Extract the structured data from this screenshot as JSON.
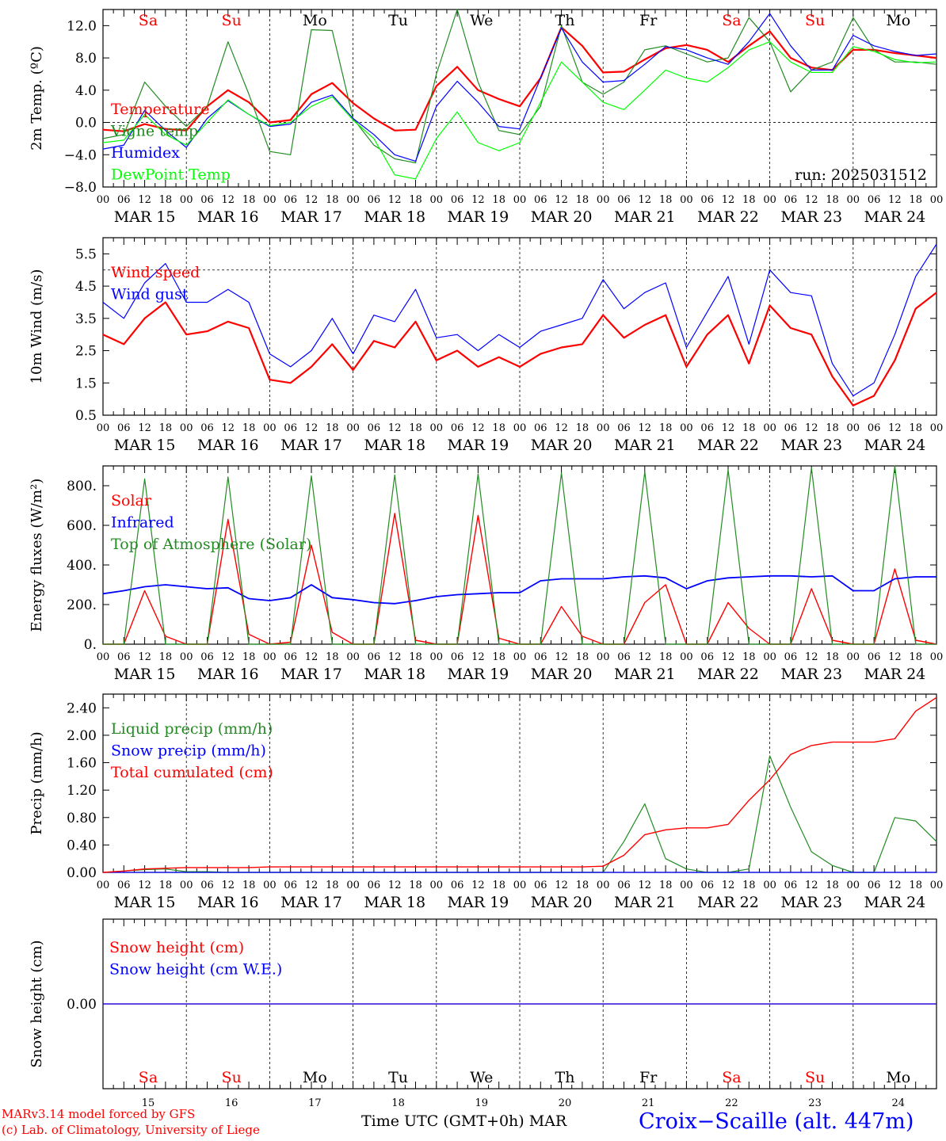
{
  "chart_data": [
    {
      "type": "line",
      "ylabel": "2m Temp. (ºC)",
      "ylim": [
        -8,
        14
      ],
      "yticks": [
        "12.0",
        "8.0",
        "4.0",
        "0.0",
        "−4.0",
        "−8.0"
      ],
      "ytick_values": [
        12,
        8,
        4,
        0,
        -4,
        -8
      ],
      "zero_line": true,
      "run_label": "run: 2025031512",
      "day_names": [
        {
          "label": "Sa",
          "color": "#ff0000"
        },
        {
          "label": "Su",
          "color": "#ff0000"
        },
        {
          "label": "Mo",
          "color": "#000000"
        },
        {
          "label": "Tu",
          "color": "#000000"
        },
        {
          "label": "We",
          "color": "#000000"
        },
        {
          "label": "Th",
          "color": "#000000"
        },
        {
          "label": "Fr",
          "color": "#000000"
        },
        {
          "label": "Sa",
          "color": "#ff0000"
        },
        {
          "label": "Su",
          "color": "#ff0000"
        },
        {
          "label": "Mo",
          "color": "#000000"
        }
      ],
      "x_hours": [
        0,
        6,
        12,
        18,
        24,
        30,
        36,
        42,
        48,
        54,
        60,
        66,
        72,
        78,
        84,
        90,
        96,
        102,
        108,
        114,
        120,
        126,
        132,
        138,
        144,
        150,
        156,
        162,
        168,
        174,
        180,
        186,
        192,
        198,
        204,
        210,
        216,
        222,
        228,
        234,
        240
      ],
      "series": [
        {
          "name": "Temperature",
          "color": "#ff0000",
          "width": 2.2,
          "values": [
            -0.9,
            -1.1,
            -0.2,
            -0.8,
            -1.0,
            2.0,
            4.0,
            2.5,
            0.0,
            0.3,
            3.5,
            4.9,
            2.4,
            0.5,
            -1.0,
            -0.9,
            4.5,
            6.9,
            4.0,
            2.9,
            2.0,
            5.5,
            11.8,
            9.5,
            6.2,
            6.3,
            7.8,
            9.2,
            9.6,
            9.0,
            7.5,
            9.5,
            11.3,
            8.0,
            6.8,
            6.5,
            9.0,
            9.0,
            8.6,
            8.3,
            8.0
          ]
        },
        {
          "name": "Vigne temp",
          "color": "#228b22",
          "width": 1.2,
          "values": [
            -2.0,
            -1.5,
            5.0,
            2.0,
            -0.5,
            2.0,
            10.0,
            3.5,
            -3.6,
            -4.0,
            11.5,
            11.4,
            0.5,
            -2.8,
            -4.5,
            -5.0,
            6.0,
            14.0,
            5.0,
            -1.0,
            -1.5,
            2.0,
            12.0,
            5.0,
            3.5,
            5.0,
            9.0,
            9.5,
            8.5,
            7.5,
            8.0,
            13.0,
            10.0,
            3.8,
            6.5,
            7.5,
            13.0,
            9.0,
            7.5,
            7.5,
            7.2
          ]
        },
        {
          "name": "Humidex",
          "color": "#0000ff",
          "width": 1.2,
          "values": [
            -3.3,
            -2.8,
            1.5,
            -1.0,
            -3.1,
            0.5,
            2.7,
            1.0,
            -0.5,
            -0.2,
            2.5,
            3.4,
            0.5,
            -1.5,
            -4.0,
            -4.8,
            2.0,
            5.1,
            2.5,
            -0.5,
            -0.8,
            5.5,
            11.7,
            7.5,
            5.0,
            5.2,
            7.2,
            9.4,
            9.0,
            8.0,
            7.2,
            10.0,
            13.5,
            9.5,
            6.5,
            6.5,
            10.8,
            9.5,
            8.8,
            8.3,
            8.5
          ]
        },
        {
          "name": "DewPoint Temp",
          "color": "#00ff00",
          "width": 1.2,
          "values": [
            -2.5,
            -2.2,
            1.0,
            -1.5,
            -2.8,
            0.0,
            2.8,
            1.0,
            -0.4,
            0.0,
            2.0,
            3.2,
            0.3,
            -2.0,
            -6.5,
            -7.0,
            -2.0,
            1.3,
            -2.5,
            -3.5,
            -2.5,
            2.5,
            7.5,
            5.0,
            2.5,
            1.6,
            4.0,
            6.5,
            5.5,
            5.0,
            6.8,
            9.0,
            10.0,
            7.5,
            6.2,
            6.2,
            9.4,
            8.8,
            7.8,
            7.4,
            7.5
          ]
        }
      ]
    },
    {
      "type": "line",
      "ylabel": "10m Wind (m/s)",
      "ylim": [
        0.5,
        6.0
      ],
      "yticks": [
        "5.5",
        "4.5",
        "3.5",
        "2.5",
        "1.5",
        "0.5"
      ],
      "ytick_values": [
        5.5,
        4.5,
        3.5,
        2.5,
        1.5,
        0.5
      ],
      "ref_line": 5.0,
      "x_hours": [
        0,
        6,
        12,
        18,
        24,
        30,
        36,
        42,
        48,
        54,
        60,
        66,
        72,
        78,
        84,
        90,
        96,
        102,
        108,
        114,
        120,
        126,
        132,
        138,
        144,
        150,
        156,
        162,
        168,
        174,
        180,
        186,
        192,
        198,
        204,
        210,
        216,
        222,
        228,
        234,
        240
      ],
      "series": [
        {
          "name": "Wind speed",
          "color": "#ff0000",
          "width": 2.2,
          "values": [
            3.0,
            2.7,
            3.5,
            4.0,
            3.0,
            3.1,
            3.4,
            3.2,
            1.6,
            1.5,
            2.0,
            2.7,
            1.9,
            2.8,
            2.6,
            3.4,
            2.2,
            2.5,
            2.0,
            2.3,
            2.0,
            2.4,
            2.6,
            2.7,
            3.6,
            2.9,
            3.3,
            3.6,
            2.0,
            3.0,
            3.6,
            2.1,
            3.9,
            3.2,
            3.0,
            1.7,
            0.8,
            1.1,
            2.2,
            3.8,
            4.3
          ]
        },
        {
          "name": "Wind gust",
          "color": "#0000ff",
          "width": 1.2,
          "values": [
            4.0,
            3.5,
            4.6,
            5.2,
            4.0,
            4.0,
            4.4,
            4.0,
            2.4,
            2.0,
            2.5,
            3.5,
            2.4,
            3.6,
            3.4,
            4.4,
            2.9,
            3.0,
            2.5,
            3.0,
            2.6,
            3.1,
            3.3,
            3.5,
            4.7,
            3.8,
            4.3,
            4.6,
            2.6,
            3.7,
            4.8,
            2.7,
            5.0,
            4.3,
            4.2,
            2.1,
            1.1,
            1.5,
            3.0,
            4.8,
            5.8
          ]
        }
      ]
    },
    {
      "type": "line",
      "ylabel": "Energy fluxes (W/m²)",
      "ylim": [
        0,
        900
      ],
      "yticks": [
        "800.",
        "600.",
        "400.",
        "200.",
        "0."
      ],
      "ytick_values": [
        800,
        600,
        400,
        200,
        0
      ],
      "x_hours": [
        0,
        6,
        12,
        18,
        24,
        30,
        36,
        42,
        48,
        54,
        60,
        66,
        72,
        78,
        84,
        90,
        96,
        102,
        108,
        114,
        120,
        126,
        132,
        138,
        144,
        150,
        156,
        162,
        168,
        174,
        180,
        186,
        192,
        198,
        204,
        210,
        216,
        222,
        228,
        234,
        240
      ],
      "series": [
        {
          "name": "Solar",
          "color": "#ff0000",
          "width": 1.4,
          "values": [
            0,
            0,
            270,
            40,
            0,
            0,
            630,
            50,
            0,
            10,
            500,
            60,
            0,
            0,
            660,
            20,
            0,
            0,
            650,
            30,
            0,
            0,
            190,
            40,
            0,
            0,
            210,
            300,
            0,
            0,
            210,
            80,
            0,
            0,
            280,
            20,
            0,
            0,
            380,
            20,
            0
          ]
        },
        {
          "name": "Infrared",
          "color": "#0000ff",
          "width": 1.8,
          "values": [
            255,
            270,
            290,
            300,
            290,
            280,
            285,
            230,
            220,
            235,
            300,
            235,
            225,
            210,
            205,
            220,
            240,
            250,
            255,
            260,
            260,
            320,
            330,
            330,
            330,
            340,
            345,
            335,
            280,
            320,
            335,
            340,
            345,
            345,
            340,
            345,
            270,
            270,
            330,
            340,
            340
          ]
        },
        {
          "name": "Top of Atmosphere (Solar)",
          "color": "#228b22",
          "width": 1.2,
          "values": [
            0,
            0,
            835,
            0,
            0,
            0,
            845,
            0,
            0,
            0,
            850,
            0,
            0,
            0,
            855,
            0,
            0,
            0,
            860,
            0,
            0,
            0,
            865,
            0,
            0,
            0,
            870,
            0,
            0,
            0,
            880,
            0,
            0,
            0,
            890,
            0,
            0,
            0,
            900,
            0,
            0
          ]
        }
      ]
    },
    {
      "type": "line",
      "ylabel": "Precip (mm/h)",
      "ylim": [
        0,
        2.6
      ],
      "yticks": [
        "2.40",
        "2.00",
        "1.60",
        "1.20",
        "0.80",
        "0.40",
        "0.00"
      ],
      "ytick_values": [
        2.4,
        2.0,
        1.6,
        1.2,
        0.8,
        0.4,
        0.0
      ],
      "x_hours": [
        0,
        6,
        12,
        18,
        24,
        30,
        36,
        42,
        48,
        54,
        60,
        66,
        72,
        78,
        84,
        90,
        96,
        102,
        108,
        114,
        120,
        126,
        132,
        138,
        144,
        150,
        156,
        162,
        168,
        174,
        180,
        186,
        192,
        198,
        204,
        210,
        216,
        222,
        228,
        234,
        240
      ],
      "series": [
        {
          "name": "Liquid precip (mm/h)",
          "color": "#228b22",
          "width": 1.2,
          "values": [
            0,
            0.02,
            0.04,
            0.05,
            0.01,
            0.01,
            0.0,
            0.0,
            0.0,
            0.0,
            0.0,
            0.0,
            0.0,
            0.0,
            0.0,
            0.0,
            0.0,
            0.0,
            0.0,
            0.0,
            0.0,
            0.0,
            0.0,
            0.0,
            0.0,
            0.45,
            1.0,
            0.2,
            0.05,
            0.0,
            0.0,
            0.05,
            1.7,
            0.95,
            0.3,
            0.1,
            0.0,
            0.0,
            0.8,
            0.75,
            0.45
          ]
        },
        {
          "name": "Snow precip (mm/h)",
          "color": "#0000ff",
          "width": 1.2,
          "values": [
            0,
            0,
            0,
            0,
            0,
            0,
            0,
            0,
            0,
            0,
            0,
            0,
            0,
            0,
            0,
            0,
            0,
            0,
            0,
            0,
            0,
            0,
            0,
            0,
            0,
            0,
            0,
            0,
            0,
            0,
            0,
            0,
            0,
            0,
            0,
            0,
            0,
            0,
            0,
            0,
            0
          ]
        },
        {
          "name": "Total cumulated (cm)",
          "color": "#ff0000",
          "width": 1.4,
          "values": [
            0,
            0.02,
            0.05,
            0.06,
            0.07,
            0.07,
            0.07,
            0.07,
            0.08,
            0.08,
            0.08,
            0.08,
            0.08,
            0.08,
            0.08,
            0.08,
            0.08,
            0.08,
            0.08,
            0.08,
            0.08,
            0.08,
            0.08,
            0.08,
            0.09,
            0.25,
            0.55,
            0.62,
            0.65,
            0.65,
            0.7,
            1.05,
            1.35,
            1.72,
            1.85,
            1.9,
            1.9,
            1.9,
            1.95,
            2.35,
            2.55
          ]
        }
      ]
    },
    {
      "type": "line",
      "ylabel": "Snow height (cm)",
      "ylim": [
        -1,
        1
      ],
      "yticks": [
        "0.00"
      ],
      "ytick_values": [
        0
      ],
      "series": [
        {
          "name": "Snow height (cm)",
          "color": "#ff0000",
          "width": 1.2,
          "values": [
            0,
            0
          ]
        },
        {
          "name": "Snow height (cm W.E.)",
          "color": "#0000ff",
          "width": 1.2,
          "values": [
            0,
            0
          ]
        }
      ],
      "day_names": [
        "Sa",
        "Su",
        "Mo",
        "Tu",
        "We",
        "Th",
        "Fr",
        "Sa",
        "Su",
        "Mo"
      ],
      "day_numbers": [
        "15",
        "16",
        "17",
        "18",
        "19",
        "20",
        "21",
        "22",
        "23",
        "24"
      ],
      "xlabel": "Time UTC (GMT+0h) MAR"
    }
  ],
  "hour_ticks": [
    "00",
    "06",
    "12",
    "18"
  ],
  "date_labels": [
    "MAR 15",
    "MAR 16",
    "MAR 17",
    "MAR 18",
    "MAR 19",
    "MAR 20",
    "MAR 21",
    "MAR 22",
    "MAR 23",
    "MAR 24"
  ],
  "footer": {
    "credit_line1": "MARv3.14 model forced by GFS",
    "credit_line2": "(c) Lab. of Climatology, University of Liege",
    "x_title": "Time UTC (GMT+0h) MAR",
    "station": "Croix−Scaille (alt. 447m)"
  }
}
